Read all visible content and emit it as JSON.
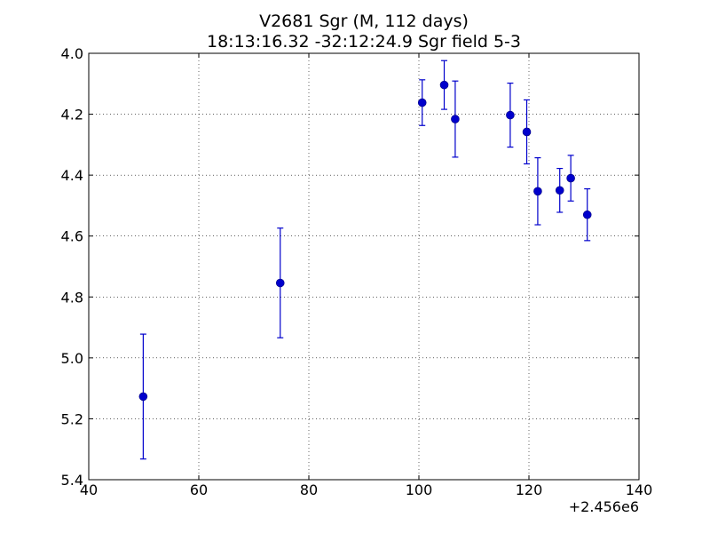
{
  "chart_data": {
    "type": "scatter",
    "title": "V2681 Sgr  (M, 112 days)",
    "subtitle": "18:13:16.32 -32:12:24.9 Sgr field 5-3",
    "xlabel": "",
    "ylabel": "",
    "x_offset_label": "+2.456e6",
    "xlim": [
      40,
      140
    ],
    "ylim": [
      4.0,
      5.4
    ],
    "y_inverted": true,
    "grid": true,
    "x_ticks": [
      40,
      60,
      80,
      100,
      120,
      140
    ],
    "x_tick_labels": [
      "40",
      "60",
      "80",
      "100",
      "120",
      "140"
    ],
    "y_ticks": [
      4.0,
      4.2,
      4.4,
      4.6,
      4.8,
      5.0,
      5.2,
      5.4
    ],
    "y_tick_labels": [
      "4.0",
      "4.2",
      "4.4",
      "4.6",
      "4.8",
      "5.0",
      "5.2",
      "5.4"
    ],
    "series": [
      {
        "color": "#0000cc",
        "x": [
          49.9,
          74.8,
          100.6,
          104.6,
          106.6,
          116.6,
          119.6,
          121.6,
          125.6,
          127.6,
          130.6
        ],
        "y": [
          5.127,
          4.754,
          4.162,
          4.104,
          4.216,
          4.203,
          4.258,
          4.453,
          4.45,
          4.41,
          4.53
        ],
        "err": [
          0.205,
          0.18,
          0.075,
          0.08,
          0.125,
          0.105,
          0.105,
          0.11,
          0.072,
          0.075,
          0.085
        ]
      }
    ]
  }
}
